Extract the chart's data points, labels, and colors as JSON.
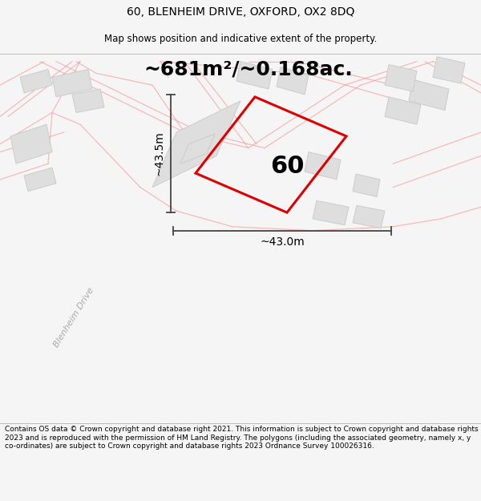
{
  "title_line1": "60, BLENHEIM DRIVE, OXFORD, OX2 8DQ",
  "title_line2": "Map shows position and indicative extent of the property.",
  "footer_text": "Contains OS data © Crown copyright and database right 2021. This information is subject to Crown copyright and database rights 2023 and is reproduced with the permission of HM Land Registry. The polygons (including the associated geometry, namely x, y co-ordinates) are subject to Crown copyright and database rights 2023 Ordnance Survey 100026316.",
  "area_label": "~681m²/~0.168ac.",
  "property_number": "60",
  "width_label": "~43.0m",
  "height_label": "~43.5m",
  "bg_color": "#f5f5f5",
  "map_bg": "#ffffff",
  "property_color": "#dd0000",
  "dim_line_color": "#444444",
  "street_label": "Blenheim Drive",
  "road_color": "#f5a0a0",
  "building_fill": "#dedede",
  "building_outline": "#cccccc",
  "title_fontsize": 10,
  "subtitle_fontsize": 8.5,
  "area_fontsize": 18,
  "number_fontsize": 22,
  "dim_fontsize": 10,
  "footer_fontsize": 6.5,
  "street_fontsize": 8
}
